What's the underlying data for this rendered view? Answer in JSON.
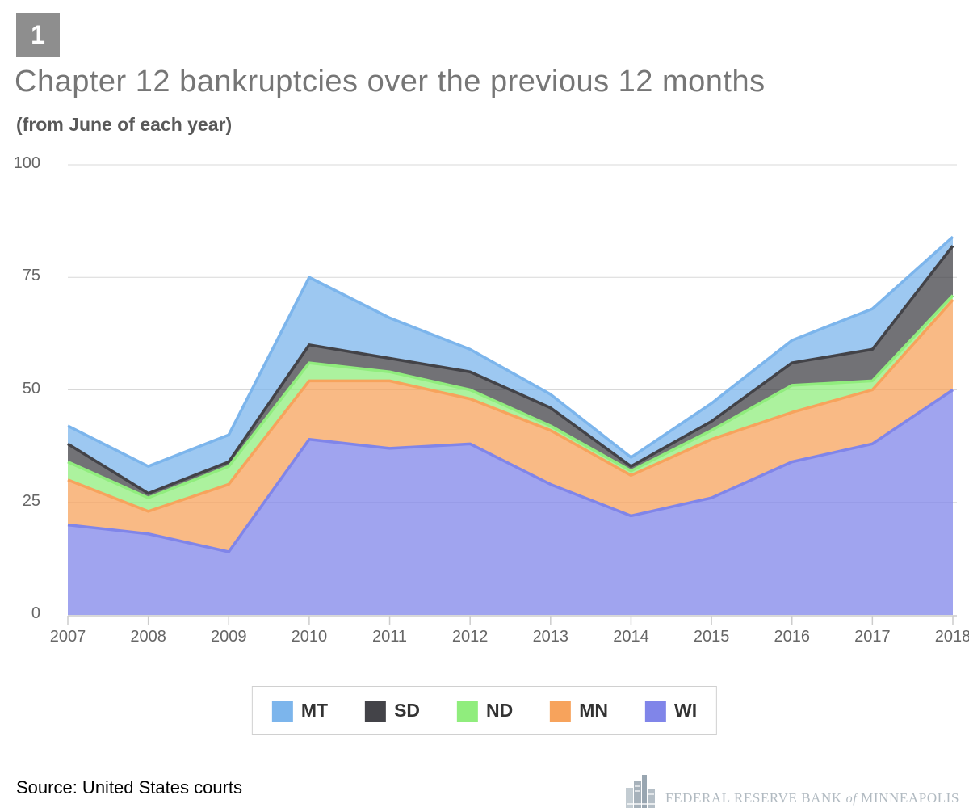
{
  "badge": {
    "number": "1"
  },
  "header": {
    "title": "Chapter 12 bankruptcies over the previous 12 months",
    "subtitle": "(from June of each year)"
  },
  "chart_data": {
    "type": "area",
    "stacked": true,
    "title": "Chapter 12 bankruptcies over the previous 12 months",
    "subtitle": "(from June of each year)",
    "x": [
      2007,
      2008,
      2009,
      2010,
      2011,
      2012,
      2013,
      2014,
      2015,
      2016,
      2017,
      2018
    ],
    "series": [
      {
        "name": "MT",
        "color": "#7cb5ec",
        "values": [
          4,
          6,
          6,
          15,
          9,
          5,
          3,
          2,
          4,
          5,
          9,
          2
        ]
      },
      {
        "name": "SD",
        "color": "#434348",
        "values": [
          4,
          1,
          1,
          4,
          3,
          4,
          4,
          1,
          2,
          5,
          7,
          11
        ]
      },
      {
        "name": "ND",
        "color": "#90ed7d",
        "values": [
          4,
          3,
          4,
          4,
          2,
          2,
          1,
          1,
          2,
          6,
          2,
          1
        ]
      },
      {
        "name": "MN",
        "color": "#f7a35c",
        "values": [
          10,
          5,
          15,
          13,
          15,
          10,
          12,
          9,
          13,
          11,
          12,
          20
        ]
      },
      {
        "name": "WI",
        "color": "#8085e9",
        "values": [
          20,
          18,
          14,
          39,
          37,
          38,
          29,
          22,
          26,
          34,
          38,
          50
        ]
      }
    ],
    "stack_order_bottom_to_top": [
      "WI",
      "MN",
      "ND",
      "SD",
      "MT"
    ],
    "stack_totals": [
      42,
      33,
      40,
      75,
      66,
      59,
      49,
      35,
      47,
      61,
      68,
      84
    ],
    "ylim": [
      0,
      100
    ],
    "yticks": [
      0,
      25,
      50,
      75,
      100
    ],
    "grid": true,
    "legend_position": "bottom",
    "fill_opacity": 0.75
  },
  "colors": {
    "grid": "#d8d8d8",
    "axis_line": "#cccccc",
    "axis_labels": "#666666",
    "title": "#767676",
    "badge_bg": "#8e8e8e",
    "logo_gray": "#b1bac1"
  },
  "footer": {
    "source": "Source: United States courts",
    "logo": {
      "bank_text": "FEDERAL RESERVE BANK",
      "of": "of",
      "city": "MINNEAPOLIS"
    }
  }
}
